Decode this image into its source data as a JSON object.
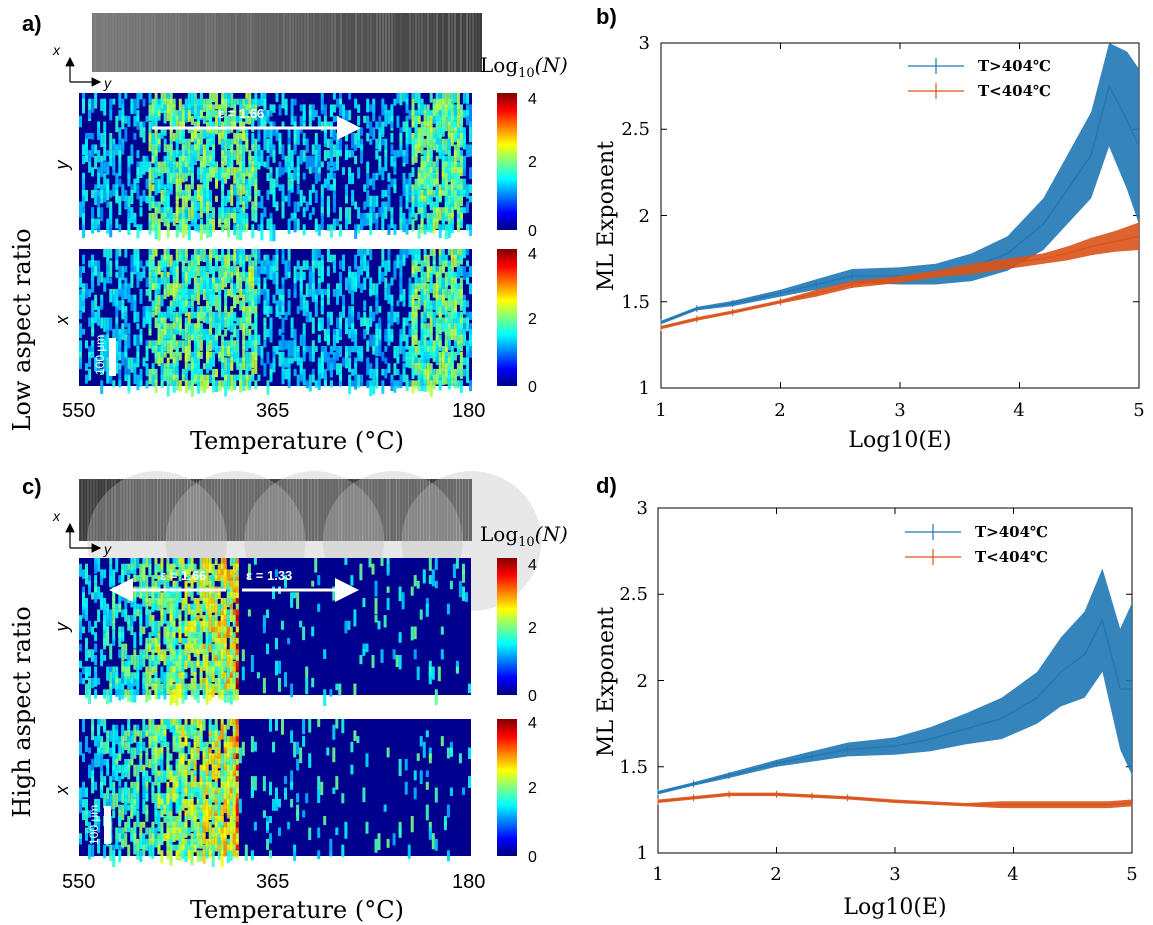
{
  "panels": {
    "a": {
      "label": "a)",
      "row_title": "Low aspect ratio",
      "row_y_label": "y",
      "row_x_label": "x",
      "axis_x_label": "x",
      "axis_y_label": "y",
      "colorbar_title": "Log10(N)",
      "colorbar_title_base": "Log",
      "colorbar_title_sub": "10",
      "colorbar_title_arg": "(N)",
      "colorbar_ticks": [
        "4",
        "2",
        "0"
      ],
      "strain_label": "ε = 1.66",
      "scale_bar": "100 μm",
      "x_ticks": [
        "550",
        "365",
        "180"
      ],
      "xlabel": "Temperature (°C)"
    },
    "c": {
      "label": "c)",
      "row_title": "High aspect ratio",
      "row_y_label": "y",
      "row_x_label": "x",
      "axis_x_label": "x",
      "axis_y_label": "y",
      "colorbar_title": "Log10(N)",
      "colorbar_title_base": "Log",
      "colorbar_title_sub": "10",
      "colorbar_title_arg": "(N)",
      "colorbar_ticks": [
        "4",
        "2",
        "0"
      ],
      "strain_label_1": "ε = 1.66",
      "strain_label_2": "ε = 1.33",
      "scale_bar": "100 μm",
      "x_ticks": [
        "550",
        "365",
        "180"
      ],
      "xlabel": "Temperature (°C)"
    },
    "b": {
      "label": "b)",
      "xlabel": "Log10(E)",
      "ylabel": "ML Exponent",
      "x_ticks": [
        "1",
        "2",
        "3",
        "4",
        "5"
      ],
      "y_ticks": [
        "1",
        "1.5",
        "2",
        "2.5",
        "3"
      ],
      "legend_1": "T>404℃",
      "legend_2": "T<404℃"
    },
    "d": {
      "label": "d)",
      "xlabel": "Log10(E)",
      "ylabel": "ML Exponent",
      "x_ticks": [
        "1",
        "2",
        "3",
        "4",
        "5"
      ],
      "y_ticks": [
        "1",
        "1.5",
        "2",
        "2.5",
        "3"
      ],
      "legend_1": "T>404℃",
      "legend_2": "T<404℃"
    }
  },
  "colors": {
    "hot": "#1f77b4",
    "cold": "#d95319"
  },
  "chart_data": [
    {
      "type": "heatmap",
      "panel": "a",
      "x_axis": "Temperature (°C)",
      "x_range": [
        550,
        180
      ],
      "colorbar": "Log10(N)",
      "color_range": [
        0,
        4
      ],
      "rows": [
        "y",
        "x"
      ]
    },
    {
      "type": "line",
      "panel": "b",
      "xlabel": "Log10(E)",
      "ylabel": "ML Exponent",
      "xlim": [
        1,
        5
      ],
      "ylim": [
        1,
        3
      ],
      "legend": "top-center",
      "series": [
        {
          "name": "T>404℃",
          "x": [
            1.0,
            1.3,
            1.6,
            2.0,
            2.3,
            2.6,
            3.0,
            3.3,
            3.6,
            3.9,
            4.2,
            4.4,
            4.6,
            4.75,
            4.9,
            5.0
          ],
          "y": [
            1.38,
            1.46,
            1.49,
            1.55,
            1.6,
            1.65,
            1.65,
            1.66,
            1.7,
            1.78,
            1.95,
            2.15,
            2.35,
            2.75,
            2.55,
            2.4
          ],
          "err": [
            0.01,
            0.01,
            0.015,
            0.02,
            0.03,
            0.04,
            0.05,
            0.06,
            0.08,
            0.1,
            0.15,
            0.2,
            0.25,
            0.35,
            0.4,
            0.45
          ]
        },
        {
          "name": "T<404℃",
          "x": [
            1.0,
            1.3,
            1.6,
            2.0,
            2.3,
            2.6,
            3.0,
            3.3,
            3.6,
            3.9,
            4.2,
            4.4,
            4.6,
            4.8,
            5.0
          ],
          "y": [
            1.35,
            1.4,
            1.44,
            1.5,
            1.55,
            1.6,
            1.63,
            1.66,
            1.69,
            1.72,
            1.75,
            1.78,
            1.82,
            1.85,
            1.88
          ],
          "err": [
            0.01,
            0.01,
            0.01,
            0.01,
            0.02,
            0.02,
            0.02,
            0.02,
            0.03,
            0.03,
            0.03,
            0.04,
            0.05,
            0.06,
            0.08
          ]
        }
      ]
    },
    {
      "type": "heatmap",
      "panel": "c",
      "x_axis": "Temperature (°C)",
      "x_range": [
        550,
        180
      ],
      "colorbar": "Log10(N)",
      "color_range": [
        0,
        4
      ],
      "rows": [
        "y",
        "x"
      ]
    },
    {
      "type": "line",
      "panel": "d",
      "xlabel": "Log10(E)",
      "ylabel": "ML Exponent",
      "xlim": [
        1,
        5
      ],
      "ylim": [
        1,
        3
      ],
      "legend": "top-center",
      "series": [
        {
          "name": "T>404℃",
          "x": [
            1.0,
            1.3,
            1.6,
            2.0,
            2.3,
            2.6,
            3.0,
            3.3,
            3.6,
            3.9,
            4.2,
            4.4,
            4.6,
            4.75,
            4.9,
            5.0
          ],
          "y": [
            1.35,
            1.4,
            1.45,
            1.52,
            1.56,
            1.6,
            1.62,
            1.66,
            1.72,
            1.78,
            1.9,
            2.05,
            2.15,
            2.35,
            1.95,
            1.95
          ],
          "err": [
            0.01,
            0.01,
            0.015,
            0.02,
            0.03,
            0.04,
            0.05,
            0.07,
            0.09,
            0.12,
            0.15,
            0.2,
            0.25,
            0.3,
            0.35,
            0.5
          ]
        },
        {
          "name": "T<404℃",
          "x": [
            1.0,
            1.3,
            1.6,
            2.0,
            2.3,
            2.6,
            3.0,
            3.3,
            3.6,
            3.9,
            4.2,
            4.4,
            4.6,
            4.8,
            5.0
          ],
          "y": [
            1.3,
            1.32,
            1.34,
            1.34,
            1.33,
            1.32,
            1.3,
            1.29,
            1.28,
            1.28,
            1.28,
            1.28,
            1.28,
            1.28,
            1.29
          ],
          "err": [
            0.01,
            0.01,
            0.01,
            0.01,
            0.01,
            0.01,
            0.01,
            0.01,
            0.01,
            0.02,
            0.02,
            0.02,
            0.02,
            0.02,
            0.02
          ]
        }
      ]
    }
  ]
}
